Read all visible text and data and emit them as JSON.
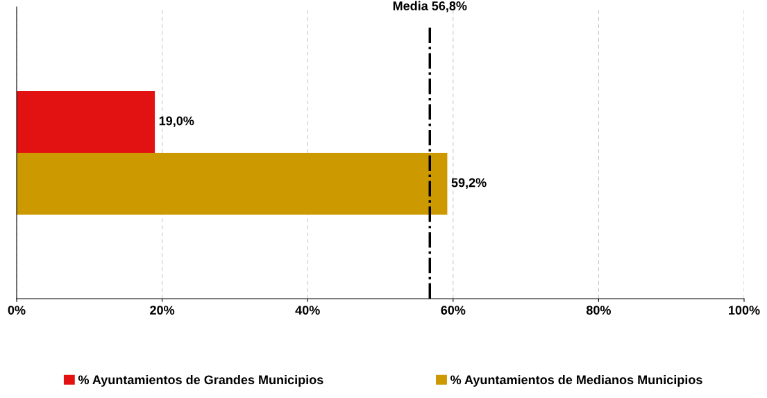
{
  "chart_data": {
    "type": "bar",
    "orientation": "horizontal",
    "categories": [
      null
    ],
    "series": [
      {
        "name": "% Ayuntamientos de Grandes Municipios",
        "color": "#e31212",
        "values": [
          19.0
        ],
        "value_labels": [
          "19,0%"
        ]
      },
      {
        "name": "% Ayuntamientos de Medianos Municipios",
        "color": "#cc9900",
        "values": [
          59.2
        ],
        "value_labels": [
          "59,2%"
        ]
      }
    ],
    "xlim": [
      0,
      100
    ],
    "xticks": [
      {
        "value": 0,
        "label": "0%"
      },
      {
        "value": 20,
        "label": "20%"
      },
      {
        "value": 40,
        "label": "40%"
      },
      {
        "value": 60,
        "label": "60%"
      },
      {
        "value": 80,
        "label": "80%"
      },
      {
        "value": 100,
        "label": "100%"
      }
    ],
    "ref_lines": [
      {
        "axis": "x",
        "value": 56.8,
        "label": "Media 56,8%",
        "color": "#000000",
        "line_style": "dashdot"
      }
    ],
    "grid": "x",
    "legend": "bottom",
    "tick_labels": "x"
  }
}
